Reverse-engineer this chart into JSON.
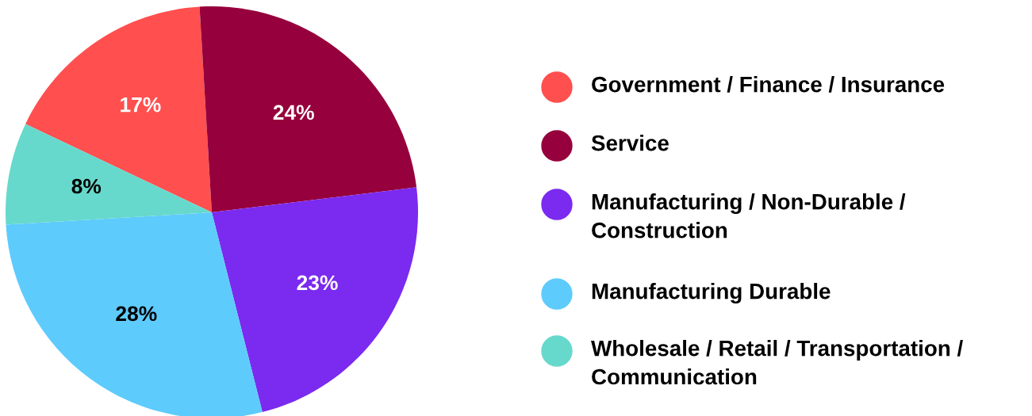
{
  "chart_data": {
    "type": "pie",
    "categories": [
      "Government / Finance / Insurance",
      "Service",
      "Manufacturing / Non-Durable / Construction",
      "Manufacturing Durable",
      "Wholesale / Retail / Transportation / Communication"
    ],
    "values": [
      17,
      24,
      23,
      28,
      8
    ],
    "colors": [
      "#ff4f4f",
      "#96003c",
      "#7b2aef",
      "#5ecbfd",
      "#66d9cc"
    ],
    "value_labels": [
      "17%",
      "24%",
      "23%",
      "28%",
      "8%"
    ],
    "legend": "right"
  }
}
